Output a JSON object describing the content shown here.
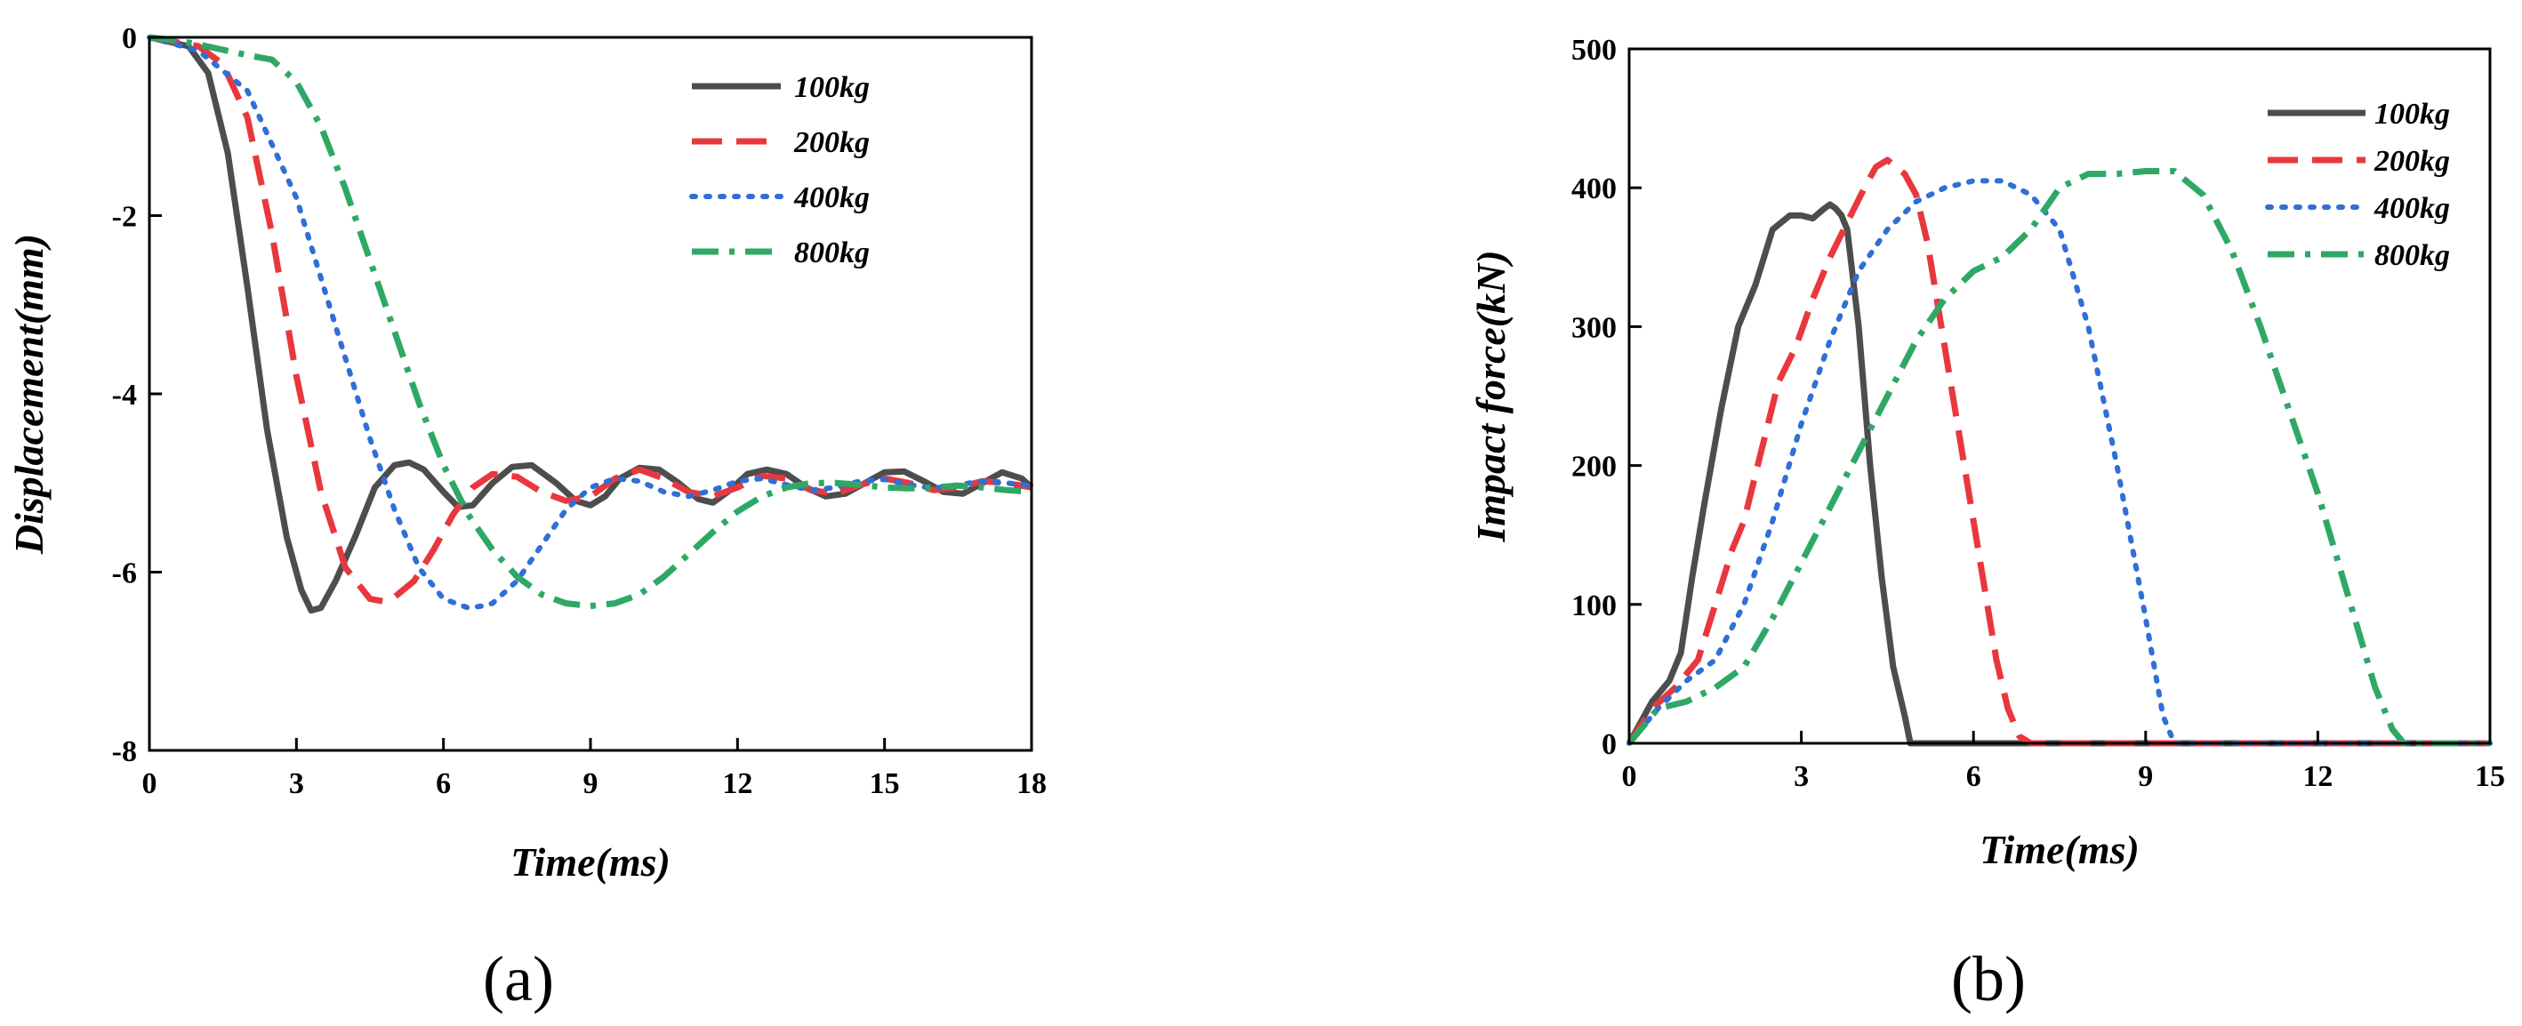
{
  "chart_data": [
    {
      "type": "line",
      "panel_label": "(a)",
      "xlabel": "Time(ms)",
      "ylabel": "Displacement(mm)",
      "xlim": [
        0,
        18
      ],
      "ylim": [
        -8,
        0
      ],
      "xticks": [
        0,
        3,
        6,
        9,
        12,
        15,
        18
      ],
      "yticks": [
        0,
        -2,
        -4,
        -6,
        -8
      ],
      "legend_position": "top-right",
      "series": [
        {
          "name": "100kg",
          "color": "#4d4d4d",
          "dash": "solid",
          "x": [
            0,
            0.8,
            1.2,
            1.6,
            2,
            2.4,
            2.8,
            3.1,
            3.3,
            3.5,
            3.8,
            4.2,
            4.6,
            5,
            5.3,
            5.6,
            6,
            6.3,
            6.6,
            7,
            7.4,
            7.8,
            8.3,
            8.7,
            9,
            9.3,
            9.6,
            10,
            10.4,
            10.8,
            11.2,
            11.5,
            11.8,
            12.2,
            12.6,
            13,
            13.4,
            13.8,
            14.2,
            14.6,
            15,
            15.4,
            15.8,
            16.2,
            16.6,
            17,
            17.4,
            17.8,
            18
          ],
          "y": [
            0,
            -0.1,
            -0.4,
            -1.3,
            -2.8,
            -4.4,
            -5.6,
            -6.2,
            -6.43,
            -6.4,
            -6.1,
            -5.6,
            -5.05,
            -4.8,
            -4.77,
            -4.85,
            -5.1,
            -5.27,
            -5.25,
            -5,
            -4.82,
            -4.8,
            -5,
            -5.2,
            -5.25,
            -5.15,
            -4.95,
            -4.83,
            -4.85,
            -5,
            -5.18,
            -5.22,
            -5.1,
            -4.9,
            -4.85,
            -4.9,
            -5.05,
            -5.15,
            -5.12,
            -5,
            -4.88,
            -4.87,
            -4.98,
            -5.1,
            -5.12,
            -5,
            -4.88,
            -4.95,
            -5.05
          ]
        },
        {
          "name": "200kg",
          "color": "#e8383d",
          "dash": "long-dash",
          "x": [
            0,
            1,
            1.5,
            2,
            2.5,
            3,
            3.5,
            4,
            4.5,
            4.8,
            5,
            5.4,
            5.8,
            6.2,
            6.6,
            7,
            7.5,
            8,
            8.5,
            9,
            9.5,
            10,
            10.5,
            11,
            11.5,
            12,
            12.5,
            13,
            13.5,
            14,
            14.5,
            15,
            15.5,
            16,
            16.5,
            17,
            17.5,
            18
          ],
          "y": [
            0,
            -0.1,
            -0.3,
            -0.9,
            -2.2,
            -3.8,
            -5.1,
            -5.95,
            -6.3,
            -6.33,
            -6.28,
            -6.1,
            -5.75,
            -5.35,
            -5.05,
            -4.9,
            -4.93,
            -5.1,
            -5.2,
            -5.15,
            -4.95,
            -4.85,
            -4.95,
            -5.1,
            -5.15,
            -5.05,
            -4.92,
            -4.95,
            -5.08,
            -5.12,
            -5.02,
            -4.95,
            -5,
            -5.08,
            -5.05,
            -4.98,
            -5,
            -5.05
          ]
        },
        {
          "name": "400kg",
          "color": "#2f6fd6",
          "dash": "dot",
          "x": [
            0,
            1,
            2,
            3,
            3.5,
            4,
            4.5,
            5,
            5.5,
            6,
            6.5,
            6.8,
            7,
            7.5,
            8,
            8.5,
            9,
            9.5,
            10,
            10.5,
            11,
            11.5,
            12,
            12.5,
            13,
            13.5,
            14,
            14.5,
            15,
            15.5,
            16,
            16.5,
            17,
            17.5,
            18
          ],
          "y": [
            0,
            -0.15,
            -0.6,
            -1.8,
            -2.7,
            -3.6,
            -4.5,
            -5.3,
            -5.95,
            -6.3,
            -6.4,
            -6.38,
            -6.35,
            -6.1,
            -5.7,
            -5.3,
            -5.05,
            -4.95,
            -4.98,
            -5.1,
            -5.15,
            -5.08,
            -4.98,
            -4.95,
            -5.02,
            -5.08,
            -5.05,
            -4.98,
            -4.96,
            -5.02,
            -5.06,
            -5.02,
            -4.98,
            -5,
            -5.03
          ]
        },
        {
          "name": "800kg",
          "color": "#2fa866",
          "dash": "dash-dot",
          "x": [
            0,
            0.5,
            1,
            1.5,
            2,
            2.5,
            3,
            3.5,
            4,
            4.5,
            5,
            5.5,
            6,
            6.5,
            7,
            7.5,
            8,
            8.5,
            9,
            9.5,
            10,
            10.5,
            11,
            11.5,
            12,
            12.5,
            13,
            13.5,
            14,
            14.5,
            15,
            15.5,
            16,
            16.5,
            17,
            17.5,
            18
          ],
          "y": [
            0,
            -0.03,
            -0.08,
            -0.14,
            -0.2,
            -0.25,
            -0.5,
            -1,
            -1.7,
            -2.5,
            -3.3,
            -4.1,
            -4.8,
            -5.35,
            -5.75,
            -6.05,
            -6.25,
            -6.35,
            -6.38,
            -6.35,
            -6.25,
            -6.05,
            -5.8,
            -5.55,
            -5.32,
            -5.15,
            -5.05,
            -5,
            -5,
            -5.02,
            -5.05,
            -5.06,
            -5.05,
            -5.03,
            -5.05,
            -5.08,
            -5.1
          ]
        }
      ]
    },
    {
      "type": "line",
      "panel_label": "(b)",
      "xlabel": "Time(ms)",
      "ylabel": "Impact force(kN)",
      "xlim": [
        0,
        15
      ],
      "ylim": [
        0,
        500
      ],
      "xticks": [
        0,
        3,
        6,
        9,
        12,
        15
      ],
      "yticks": [
        0,
        100,
        200,
        300,
        400,
        500
      ],
      "legend_position": "top-right",
      "series": [
        {
          "name": "100kg",
          "color": "#4d4d4d",
          "dash": "solid",
          "x": [
            0,
            0.2,
            0.4,
            0.7,
            0.9,
            1.1,
            1.3,
            1.6,
            1.9,
            2.2,
            2.5,
            2.8,
            3,
            3.2,
            3.4,
            3.5,
            3.6,
            3.7,
            3.8,
            4,
            4.2,
            4.4,
            4.6,
            4.8,
            4.9,
            15
          ],
          "y": [
            0,
            15,
            30,
            45,
            65,
            120,
            170,
            240,
            300,
            330,
            370,
            380,
            380,
            378,
            385,
            388,
            385,
            380,
            370,
            300,
            200,
            120,
            55,
            20,
            0,
            0
          ]
        },
        {
          "name": "200kg",
          "color": "#e8383d",
          "dash": "long-dash",
          "x": [
            0,
            0.4,
            0.8,
            1.2,
            1.5,
            1.8,
            2,
            2.3,
            2.6,
            2.9,
            3.2,
            3.5,
            3.8,
            4.1,
            4.3,
            4.5,
            4.8,
            5,
            5.2,
            5.4,
            5.6,
            5.8,
            6,
            6.2,
            6.4,
            6.6,
            6.8,
            7,
            15
          ],
          "y": [
            0,
            25,
            40,
            60,
            100,
            140,
            160,
            210,
            260,
            285,
            320,
            350,
            375,
            400,
            415,
            420,
            410,
            395,
            360,
            310,
            260,
            210,
            160,
            110,
            60,
            25,
            5,
            0,
            0
          ]
        },
        {
          "name": "400kg",
          "color": "#2f6fd6",
          "dash": "dot",
          "x": [
            0,
            0.5,
            1,
            1.5,
            2,
            2.5,
            3,
            3.5,
            4,
            4.5,
            5,
            5.5,
            6,
            6.5,
            7,
            7.5,
            8,
            8.5,
            9,
            9.3,
            9.5,
            15
          ],
          "y": [
            0,
            25,
            45,
            60,
            100,
            160,
            230,
            290,
            340,
            370,
            390,
            400,
            405,
            405,
            395,
            370,
            300,
            200,
            90,
            20,
            0,
            0
          ]
        },
        {
          "name": "800kg",
          "color": "#2fa866",
          "dash": "dash-dot",
          "x": [
            0,
            0.5,
            1,
            1.5,
            2,
            2.5,
            3,
            3.5,
            4,
            4.5,
            5,
            5.5,
            6,
            6.5,
            7,
            7.5,
            8,
            8.5,
            9,
            9.5,
            10,
            10.5,
            11,
            11.5,
            12,
            12.5,
            13,
            13.3,
            13.5,
            15
          ],
          "y": [
            0,
            25,
            30,
            40,
            55,
            90,
            130,
            170,
            210,
            250,
            290,
            320,
            340,
            350,
            370,
            400,
            410,
            410,
            412,
            412,
            395,
            355,
            300,
            240,
            180,
            110,
            40,
            10,
            0,
            0
          ]
        }
      ]
    }
  ]
}
